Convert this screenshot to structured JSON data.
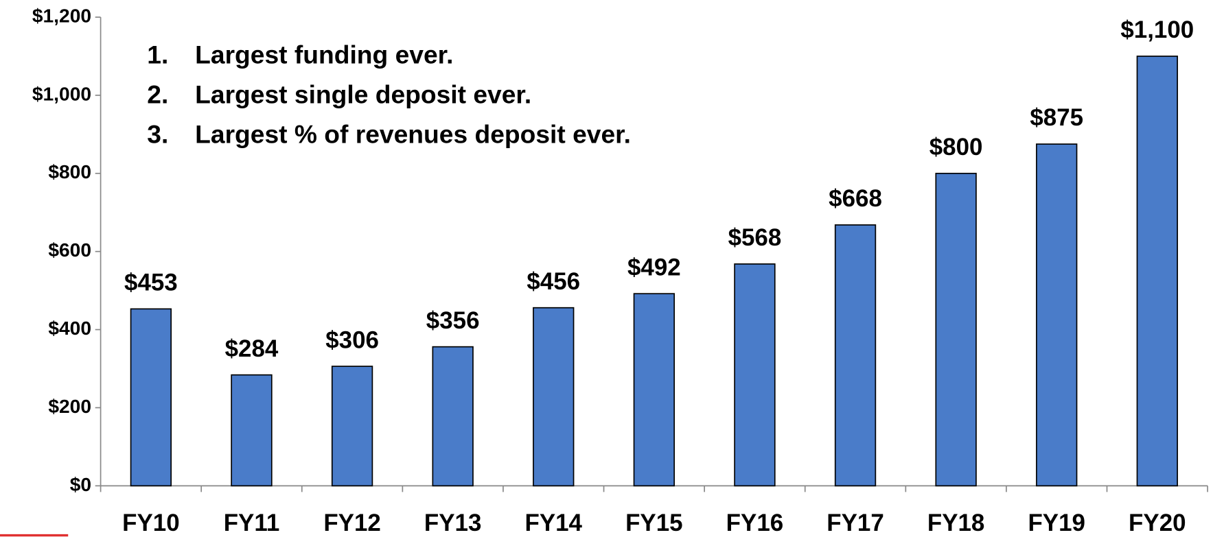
{
  "chart_data": {
    "type": "bar",
    "annotations": [
      {
        "number": "1.",
        "text": "Largest funding ever."
      },
      {
        "number": "2.",
        "text": "Largest single deposit ever."
      },
      {
        "number": "3.",
        "text": "Largest % of revenues deposit ever."
      }
    ],
    "categories": [
      "FY10",
      "FY11",
      "FY12",
      "FY13",
      "FY14",
      "FY15",
      "FY16",
      "FY17",
      "FY18",
      "FY19",
      "FY20"
    ],
    "values": [
      453,
      284,
      306,
      356,
      456,
      492,
      568,
      668,
      800,
      875,
      1100
    ],
    "value_labels": [
      "$453",
      "$284",
      "$306",
      "$356",
      "$456",
      "$492",
      "$568",
      "$668",
      "$800",
      "$875",
      "$1,100"
    ],
    "color": "#4a7cc9",
    "ylim": [
      0,
      1200
    ],
    "yticks": [
      {
        "value": 0,
        "label": "$0"
      },
      {
        "value": 200,
        "label": "$200"
      },
      {
        "value": 400,
        "label": "$400"
      },
      {
        "value": 600,
        "label": "$600"
      },
      {
        "value": 800,
        "label": "$800"
      },
      {
        "value": 1000,
        "label": "$1,000"
      },
      {
        "value": 1200,
        "label": "$1,200"
      }
    ],
    "grid": false
  }
}
